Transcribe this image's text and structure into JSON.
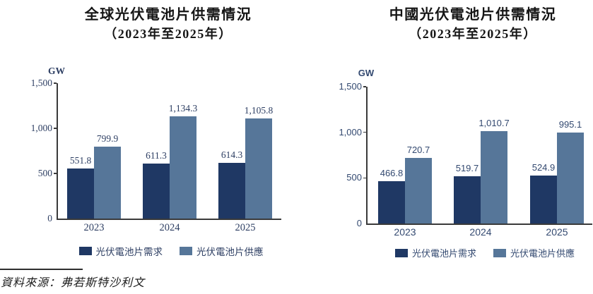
{
  "source_note": {
    "text": "資料來源：弗若斯特沙利文"
  },
  "colors": {
    "demand": "#1F3864",
    "supply": "#567699",
    "axis": "#3a3a3a",
    "left_chart_text": "#2E3F63",
    "right_chart_text": "#334970",
    "title_text": "#151515"
  },
  "chart_data": [
    {
      "type": "bar",
      "title": "全球光伏電池片供需情況",
      "subtitle": "（2023年至2025年）",
      "unit": "GW",
      "categories": [
        "2023",
        "2024",
        "2025"
      ],
      "series": [
        {
          "name": "光伏電池片需求",
          "color": "#1F3864",
          "values": [
            551.8,
            611.3,
            614.3
          ],
          "data_labels": [
            "551.8",
            "611.3",
            "614.3"
          ]
        },
        {
          "name": "光伏電池片供應",
          "color": "#567699",
          "values": [
            799.9,
            1134.3,
            1105.8
          ],
          "data_labels": [
            "799.9",
            "1,134.3",
            "1,105.8"
          ]
        }
      ],
      "ylim": [
        0,
        1500
      ],
      "yticks": [
        {
          "value": 0,
          "label": "0"
        },
        {
          "value": 500,
          "label": "500"
        },
        {
          "value": 1000,
          "label": "1,000"
        },
        {
          "value": 1500,
          "label": "1,500"
        }
      ],
      "grid": false,
      "legend_position": "bottom"
    },
    {
      "type": "bar",
      "title": "中國光伏電池片供需情況",
      "subtitle": "（2023年至2025年）",
      "unit": "GW",
      "categories": [
        "2023",
        "2024",
        "2025"
      ],
      "series": [
        {
          "name": "光伏電池片需求",
          "color": "#1F3864",
          "values": [
            466.8,
            519.7,
            524.9
          ],
          "data_labels": [
            "466.8",
            "519.7",
            "524.9"
          ]
        },
        {
          "name": "光伏電池片供應",
          "color": "#567699",
          "values": [
            720.7,
            1010.7,
            995.1
          ],
          "data_labels": [
            "720.7",
            "1,010.7",
            "995.1"
          ]
        }
      ],
      "ylim": [
        0,
        1500
      ],
      "yticks": [
        {
          "value": 0,
          "label": "0"
        },
        {
          "value": 500,
          "label": "500"
        },
        {
          "value": 1000,
          "label": "1,000"
        },
        {
          "value": 1500,
          "label": "1,500"
        }
      ],
      "grid": false,
      "legend_position": "bottom"
    }
  ]
}
